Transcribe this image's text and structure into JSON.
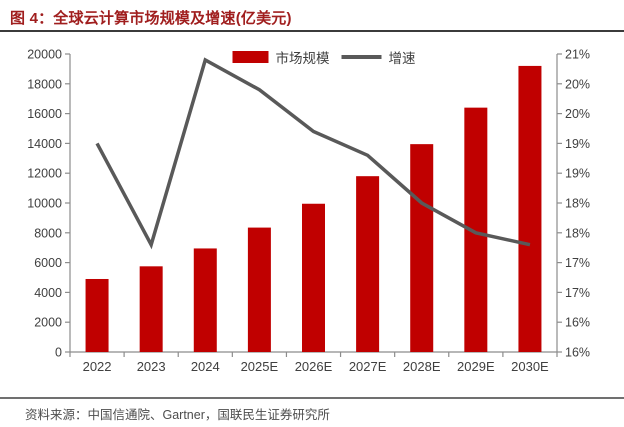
{
  "header": {
    "title": "图 4：全球云计算市场规模及增速(亿美元)"
  },
  "legend": {
    "market_label": "市场规模",
    "growth_label": "增速"
  },
  "footer": {
    "source": "资料来源：中国信通院、Gartner，国联民生证券研究所"
  },
  "colors": {
    "bar": "#c00000",
    "line": "#595959",
    "title": "#a01e1e",
    "title_rule": "#3b3b3b",
    "axis": "#8c8c8c",
    "tick_label": "#404040",
    "footer_rule": "#707070",
    "source_text": "#4d4d4d"
  },
  "chart_data": {
    "type": "combo",
    "title": "全球云计算市场规模及增速(亿美元)",
    "categories": [
      "2022",
      "2023",
      "2024",
      "2025E",
      "2026E",
      "2027E",
      "2028E",
      "2029E",
      "2030E"
    ],
    "series": [
      {
        "name": "市场规模",
        "type": "bar",
        "axis": "left",
        "unit": "亿美元",
        "values": [
          4900,
          5750,
          6950,
          8350,
          9950,
          11800,
          13950,
          16400,
          19200
        ]
      },
      {
        "name": "增速",
        "type": "line",
        "axis": "right",
        "unit": "%",
        "values": [
          19.5,
          17.8,
          20.9,
          20.4,
          19.7,
          19.3,
          18.5,
          18.0,
          17.8
        ]
      }
    ],
    "left_axis": {
      "min": 0,
      "max": 20000,
      "ticks": [
        "0",
        "2000",
        "4000",
        "6000",
        "8000",
        "10000",
        "12000",
        "14000",
        "16000",
        "18000",
        "20000"
      ]
    },
    "right_axis": {
      "min": 16,
      "max": 21,
      "ticks": [
        "16%",
        "16%",
        "17%",
        "17%",
        "18%",
        "18%",
        "19%",
        "19%",
        "20%",
        "20%",
        "21%"
      ]
    },
    "grid": false,
    "legend_position": "top-center"
  }
}
